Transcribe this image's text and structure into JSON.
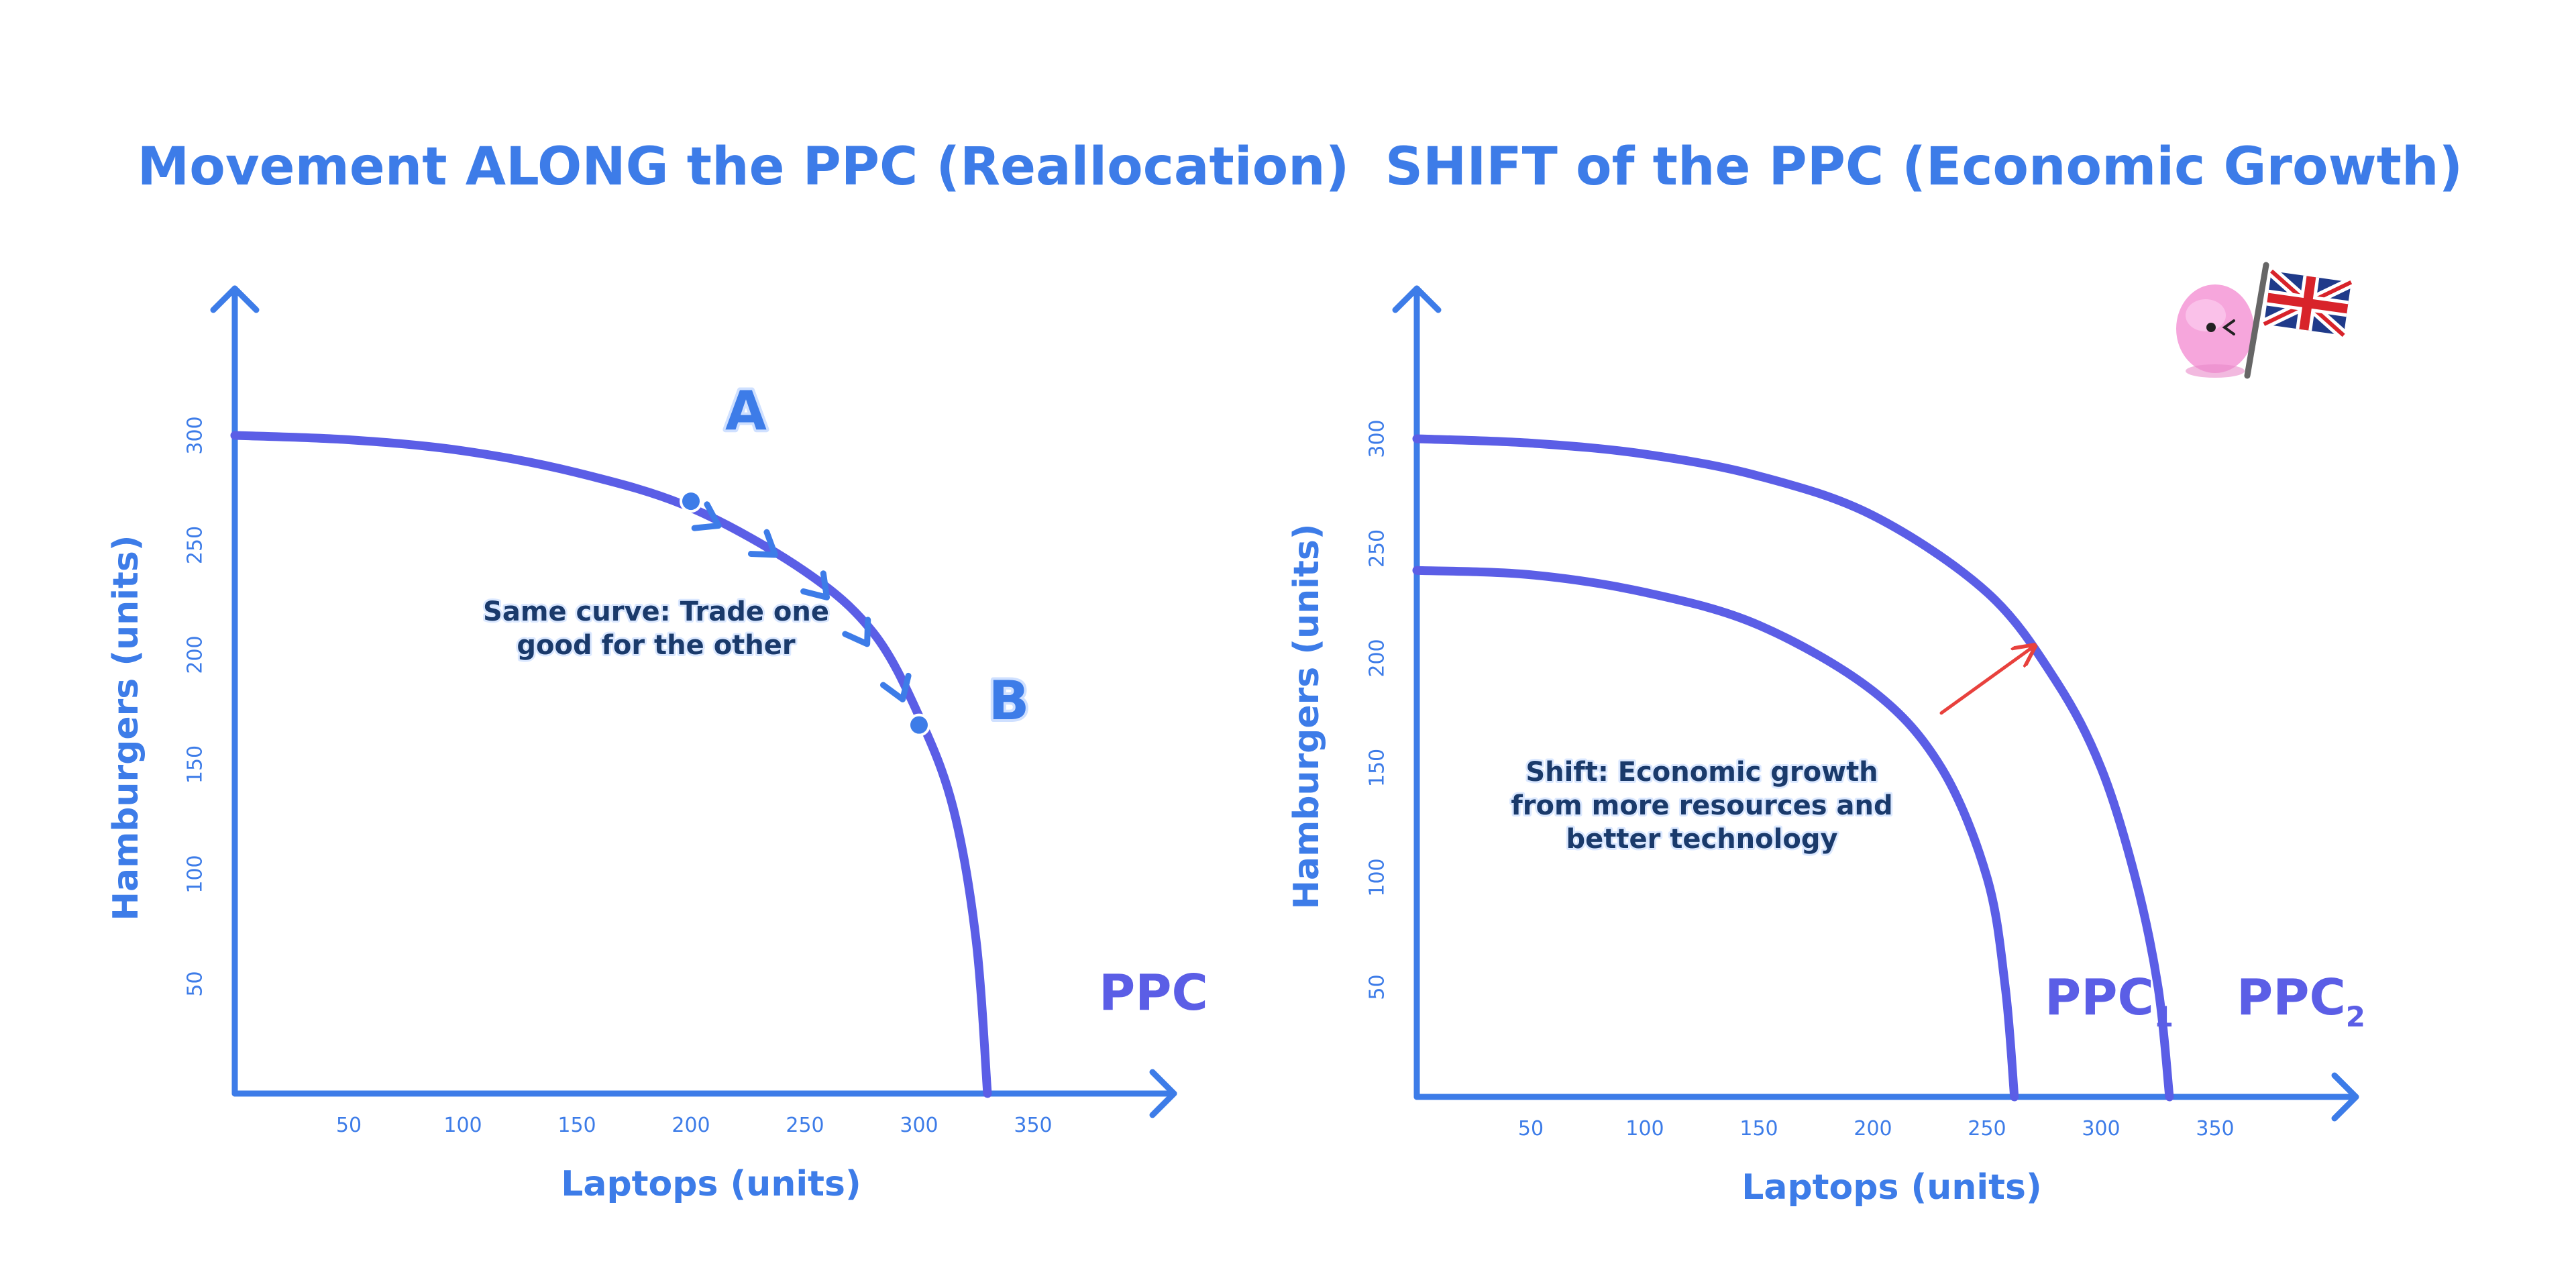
{
  "colors": {
    "axis": "#3d7ce8",
    "curve": "#5b5ee6",
    "title": "#3d7ce8",
    "note_text": "#1a3a6b",
    "shift_arrow": "#e8413d",
    "mascot": "#f49fd8"
  },
  "icons": {
    "mascot": "pink-blob-mascot-icon",
    "flag": "union-jack-flag-icon"
  },
  "chart_data": [
    {
      "type": "line",
      "title": "Movement ALONG the PPC (Reallocation)",
      "xlabel": "Laptops (units)",
      "ylabel": "Hamburgers (units)",
      "xlim": [
        0,
        400
      ],
      "ylim": [
        0,
        360
      ],
      "x_ticks": [
        50,
        100,
        150,
        200,
        250,
        300,
        350
      ],
      "y_ticks": [
        50,
        100,
        150,
        200,
        250,
        300
      ],
      "grid": false,
      "series": [
        {
          "name": "PPC",
          "points": [
            [
              0,
              300
            ],
            [
              50,
              298
            ],
            [
              100,
              293
            ],
            [
              150,
              283
            ],
            [
              200,
              267
            ],
            [
              250,
              238
            ],
            [
              280,
              210
            ],
            [
              300,
              172
            ],
            [
              315,
              130
            ],
            [
              325,
              70
            ],
            [
              330,
              0
            ]
          ]
        }
      ],
      "annotations": {
        "point_a": {
          "label": "A",
          "x": 200,
          "y": 270
        },
        "point_b": {
          "label": "B",
          "x": 300,
          "y": 168
        },
        "note_lines": [
          "Same curve: Trade one",
          "good for the other"
        ]
      }
    },
    {
      "type": "line",
      "title": "SHIFT of the PPC (Economic Growth)",
      "xlabel": "Laptops (units)",
      "ylabel": "Hamburgers (units)",
      "xlim": [
        0,
        400
      ],
      "ylim": [
        0,
        360
      ],
      "x_ticks": [
        50,
        100,
        150,
        200,
        250,
        300,
        350
      ],
      "y_ticks": [
        50,
        100,
        150,
        200,
        250,
        300
      ],
      "grid": false,
      "series": [
        {
          "name": "PPC1",
          "points": [
            [
              0,
              240
            ],
            [
              50,
              238
            ],
            [
              100,
              230
            ],
            [
              150,
              215
            ],
            [
              200,
              185
            ],
            [
              230,
              150
            ],
            [
              250,
              100
            ],
            [
              258,
              50
            ],
            [
              262,
              0
            ]
          ]
        },
        {
          "name": "PPC2",
          "points": [
            [
              0,
              300
            ],
            [
              50,
              298
            ],
            [
              100,
              293
            ],
            [
              150,
              283
            ],
            [
              200,
              265
            ],
            [
              250,
              230
            ],
            [
              280,
              190
            ],
            [
              300,
              150
            ],
            [
              315,
              100
            ],
            [
              325,
              50
            ],
            [
              330,
              0
            ]
          ]
        }
      ],
      "annotations": {
        "shift_arrow": {
          "from": [
            230,
            175
          ],
          "to": [
            270,
            205
          ]
        },
        "note_lines": [
          "Shift: Economic growth",
          "from more resources and",
          "better technology"
        ]
      }
    }
  ],
  "curve_labels": {
    "left": {
      "main": "PPC",
      "sub": ""
    },
    "right_inner": {
      "main": "PPC",
      "sub": "1"
    },
    "right_outer": {
      "main": "PPC",
      "sub": "2"
    }
  }
}
